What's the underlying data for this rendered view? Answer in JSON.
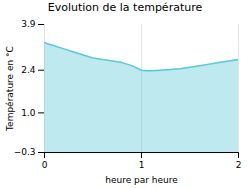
{
  "chart_data": {
    "type": "area",
    "title": "Evolution de la température",
    "xlabel": "heure par heure",
    "ylabel": "Température en °C",
    "x": [
      0,
      0.1,
      0.2,
      0.3,
      0.4,
      0.5,
      0.6,
      0.7,
      0.8,
      0.9,
      1.0,
      1.05,
      1.1,
      1.2,
      1.3,
      1.4,
      1.5,
      1.6,
      1.7,
      1.8,
      1.9,
      2.0
    ],
    "values": [
      3.3,
      3.2,
      3.1,
      3.0,
      2.9,
      2.8,
      2.75,
      2.7,
      2.65,
      2.55,
      2.4,
      2.38,
      2.38,
      2.4,
      2.42,
      2.45,
      2.5,
      2.55,
      2.6,
      2.65,
      2.7,
      2.75
    ],
    "color": "#5bc8d8",
    "xlim": [
      0,
      2
    ],
    "ylim": [
      -0.3,
      3.9
    ],
    "xticks": [
      0,
      1,
      2
    ],
    "yticks": [
      -0.3,
      {
        "value": 1.0,
        "label": "1.0"
      },
      2.4,
      3.9
    ],
    "grid": "x"
  }
}
